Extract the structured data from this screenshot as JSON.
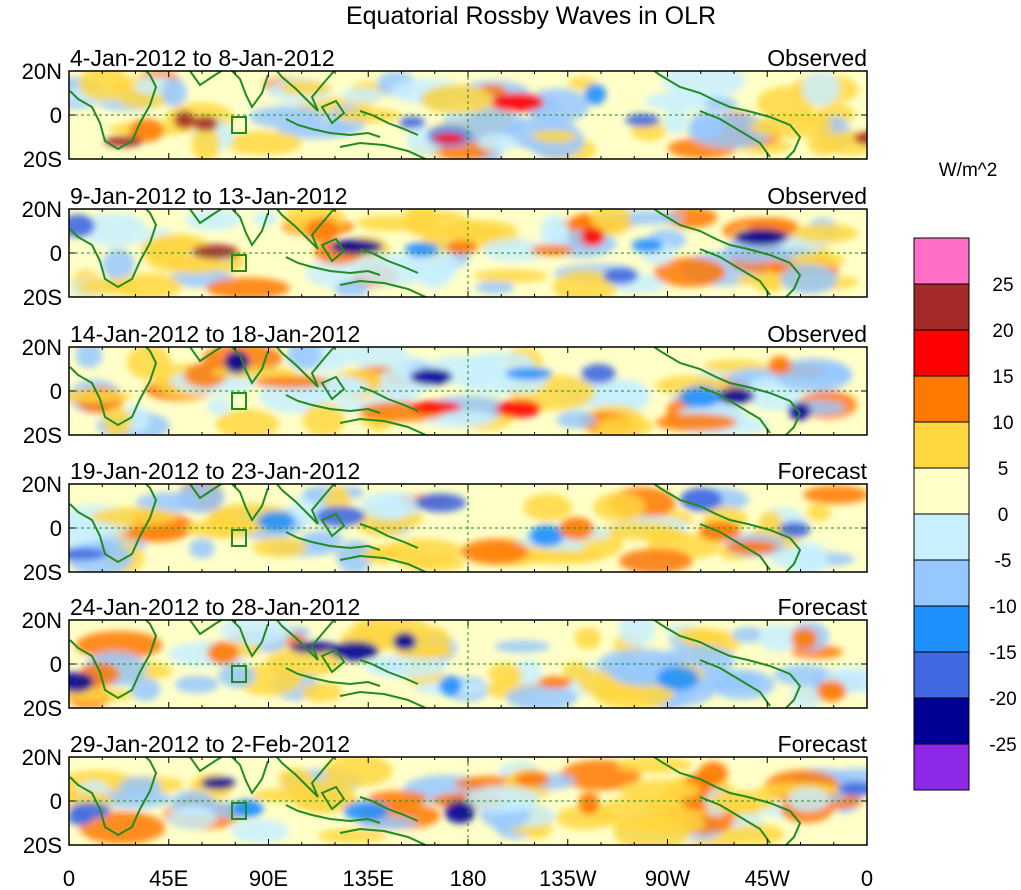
{
  "figure": {
    "title": "Equatorial Rossby Waves in OLR",
    "colorbar_units": "W/m^2"
  },
  "panels": [
    {
      "dates": "4-Jan-2012 to 8-Jan-2012",
      "status": "Observed"
    },
    {
      "dates": "9-Jan-2012 to 13-Jan-2012",
      "status": "Observed"
    },
    {
      "dates": "14-Jan-2012 to 18-Jan-2012",
      "status": "Observed"
    },
    {
      "dates": "19-Jan-2012 to 23-Jan-2012",
      "status": "Forecast"
    },
    {
      "dates": "24-Jan-2012 to 28-Jan-2012",
      "status": "Forecast"
    },
    {
      "dates": "29-Jan-2012 to 2-Feb-2012",
      "status": "Forecast"
    }
  ],
  "y_axis_labels": [
    "20N",
    "0",
    "20S"
  ],
  "x_axis_labels": [
    "0",
    "45E",
    "90E",
    "135E",
    "180",
    "135W",
    "90W",
    "45W",
    "0"
  ],
  "colorbar": {
    "labels": [
      "25",
      "20",
      "15",
      "10",
      "5",
      "0",
      "-5",
      "-10",
      "-15",
      "-20",
      "-25"
    ],
    "colors": [
      "#ff6ec7",
      "#a52a2a",
      "#ff0000",
      "#ff7800",
      "#ffd740",
      "#ffffc8",
      "#c8f0ff",
      "#96c8ff",
      "#1e90ff",
      "#4169e1",
      "#000096",
      "#8c28e6"
    ]
  },
  "colors": {
    "coast": "#228b22"
  }
}
